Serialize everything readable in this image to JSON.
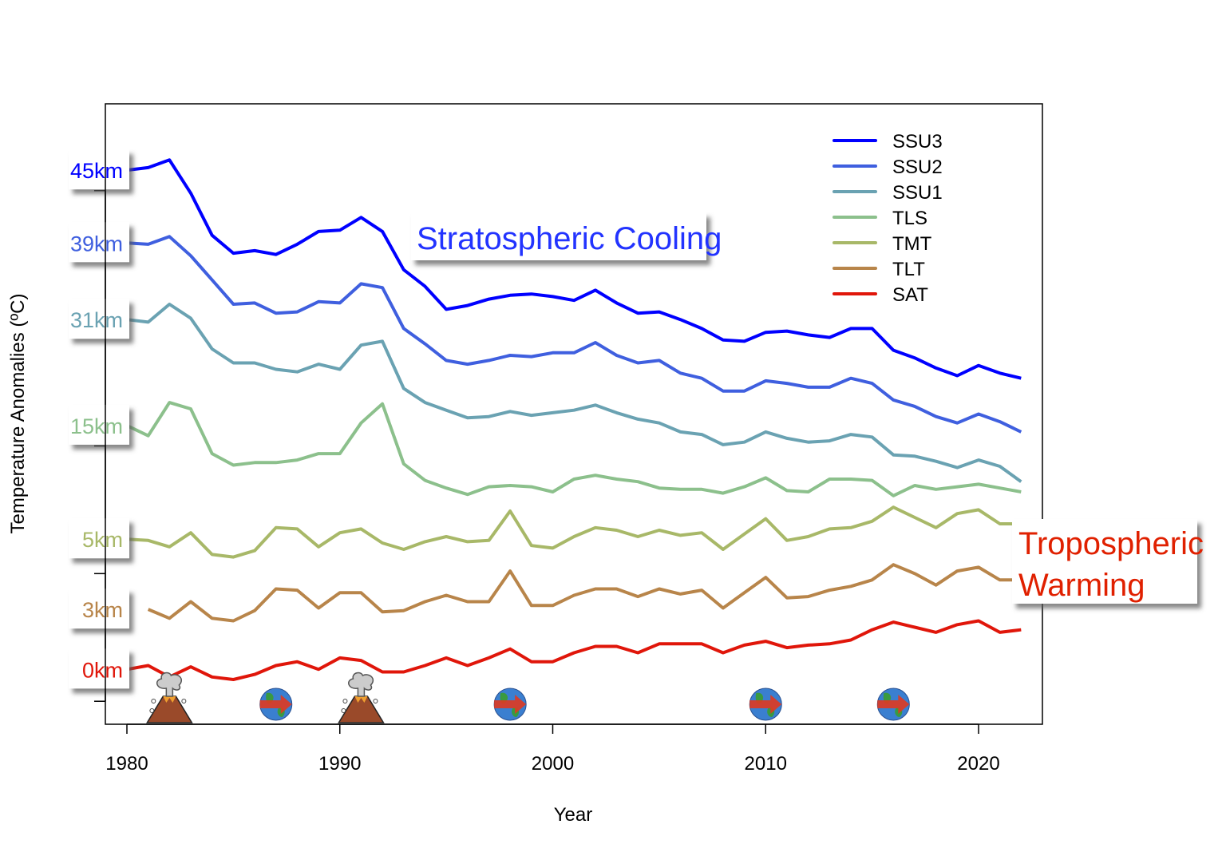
{
  "chart_data": {
    "type": "line",
    "title": "",
    "xlabel": "Year",
    "ylabel": "Temperature Anomalies (ºC)",
    "xlim": [
      1979,
      2023
    ],
    "ylim": [
      -0.18,
      4.68
    ],
    "x_ticks": [
      1980,
      1990,
      2000,
      2010,
      2020
    ],
    "y_ticks_unlabeled": [
      0,
      1,
      2,
      3,
      4
    ],
    "legend_position": "top-right",
    "series": [
      {
        "name": "SSU3",
        "altitude": "45km",
        "color": "#0000ff",
        "start_year": 1980,
        "values": [
          4.16,
          4.18,
          4.24,
          3.98,
          3.65,
          3.51,
          3.53,
          3.5,
          3.58,
          3.68,
          3.69,
          3.79,
          3.68,
          3.38,
          3.25,
          3.07,
          3.1,
          3.15,
          3.18,
          3.19,
          3.17,
          3.14,
          3.22,
          3.12,
          3.04,
          3.05,
          2.99,
          2.92,
          2.83,
          2.82,
          2.89,
          2.9,
          2.87,
          2.85,
          2.92,
          2.92,
          2.75,
          2.69,
          2.61,
          2.55,
          2.63,
          2.57,
          2.53
        ]
      },
      {
        "name": "SSU2",
        "altitude": "39km",
        "color": "#3f5fdf",
        "start_year": 1980,
        "values": [
          3.59,
          3.58,
          3.64,
          3.49,
          3.3,
          3.11,
          3.12,
          3.04,
          3.05,
          3.13,
          3.12,
          3.27,
          3.24,
          2.92,
          2.8,
          2.67,
          2.64,
          2.67,
          2.71,
          2.7,
          2.73,
          2.73,
          2.81,
          2.71,
          2.65,
          2.67,
          2.57,
          2.53,
          2.43,
          2.43,
          2.51,
          2.49,
          2.46,
          2.46,
          2.53,
          2.49,
          2.36,
          2.31,
          2.23,
          2.18,
          2.25,
          2.19,
          2.11
        ]
      },
      {
        "name": "SSU1",
        "altitude": "31km",
        "color": "#6aa2b2",
        "start_year": 1980,
        "values": [
          2.99,
          2.97,
          3.11,
          3.0,
          2.76,
          2.65,
          2.65,
          2.6,
          2.58,
          2.64,
          2.6,
          2.79,
          2.82,
          2.45,
          2.34,
          2.28,
          2.22,
          2.23,
          2.27,
          2.24,
          2.26,
          2.28,
          2.32,
          2.26,
          2.21,
          2.18,
          2.11,
          2.09,
          2.01,
          2.03,
          2.11,
          2.06,
          2.03,
          2.04,
          2.09,
          2.07,
          1.93,
          1.92,
          1.88,
          1.83,
          1.89,
          1.84,
          1.72
        ]
      },
      {
        "name": "TLS",
        "altitude": "15km",
        "color": "#8cc08c",
        "start_year": 1980,
        "values": [
          2.16,
          2.08,
          2.34,
          2.29,
          1.94,
          1.85,
          1.87,
          1.87,
          1.89,
          1.94,
          1.94,
          2.18,
          2.33,
          1.86,
          1.73,
          1.67,
          1.62,
          1.68,
          1.69,
          1.68,
          1.64,
          1.74,
          1.77,
          1.74,
          1.72,
          1.67,
          1.66,
          1.66,
          1.63,
          1.68,
          1.75,
          1.65,
          1.64,
          1.74,
          1.74,
          1.73,
          1.61,
          1.69,
          1.66,
          1.68,
          1.7,
          1.67,
          1.64
        ]
      },
      {
        "name": "TMT",
        "altitude": "5km",
        "color": "#a8b868",
        "start_year": 1980,
        "values": [
          1.27,
          1.26,
          1.21,
          1.32,
          1.15,
          1.13,
          1.18,
          1.36,
          1.35,
          1.21,
          1.32,
          1.35,
          1.24,
          1.19,
          1.25,
          1.29,
          1.25,
          1.26,
          1.49,
          1.22,
          1.2,
          1.29,
          1.36,
          1.34,
          1.29,
          1.34,
          1.3,
          1.32,
          1.19,
          1.31,
          1.43,
          1.26,
          1.29,
          1.35,
          1.36,
          1.41,
          1.52,
          1.44,
          1.36,
          1.47,
          1.5,
          1.39,
          1.39
        ]
      },
      {
        "name": "TLT",
        "altitude": "3km",
        "color": "#b8854a",
        "start_year": 1981,
        "values": [
          0.72,
          0.65,
          0.78,
          0.65,
          0.63,
          0.71,
          0.88,
          0.87,
          0.73,
          0.85,
          0.85,
          0.7,
          0.71,
          0.78,
          0.83,
          0.78,
          0.78,
          1.02,
          0.75,
          0.75,
          0.83,
          0.88,
          0.88,
          0.82,
          0.88,
          0.84,
          0.87,
          0.73,
          0.85,
          0.97,
          0.81,
          0.82,
          0.87,
          0.9,
          0.95,
          1.07,
          1.0,
          0.91,
          1.02,
          1.05,
          0.95,
          0.95
        ]
      },
      {
        "name": "SAT",
        "altitude": "0km",
        "color": "#e0160a",
        "start_year": 1980,
        "values": [
          0.25,
          0.28,
          0.19,
          0.27,
          0.19,
          0.17,
          0.21,
          0.28,
          0.31,
          0.25,
          0.34,
          0.32,
          0.23,
          0.23,
          0.28,
          0.34,
          0.28,
          0.34,
          0.41,
          0.31,
          0.31,
          0.38,
          0.43,
          0.43,
          0.38,
          0.45,
          0.45,
          0.45,
          0.38,
          0.44,
          0.47,
          0.42,
          0.44,
          0.45,
          0.48,
          0.56,
          0.62,
          0.58,
          0.54,
          0.6,
          0.63,
          0.54,
          0.56
        ]
      }
    ],
    "annotations": {
      "stratospheric": {
        "text": "Stratospheric Cooling",
        "color": "#2233ff"
      },
      "tropospheric_line1": "Tropospheric",
      "tropospheric_line2": "Warming",
      "tropospheric_color": "#e02000"
    },
    "events": [
      {
        "type": "volcano-icon",
        "year": 1982
      },
      {
        "type": "el-nino-globe-icon",
        "year": 1987
      },
      {
        "type": "volcano-icon",
        "year": 1991
      },
      {
        "type": "el-nino-globe-icon",
        "year": 1998
      },
      {
        "type": "el-nino-globe-icon",
        "year": 2010
      },
      {
        "type": "el-nino-globe-icon",
        "year": 2016
      }
    ]
  }
}
